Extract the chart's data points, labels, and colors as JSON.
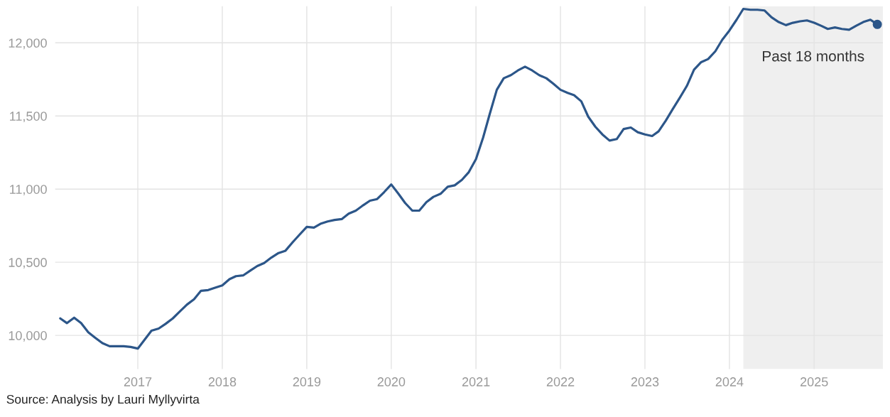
{
  "chart_data": {
    "type": "line",
    "series": [
      {
        "color": "#2c5689",
        "x": [
          "2016-02",
          "2016-03",
          "2016-04",
          "2016-05",
          "2016-06",
          "2016-07",
          "2016-08",
          "2016-09",
          "2016-10",
          "2016-11",
          "2016-12",
          "2017-01",
          "2017-02",
          "2017-03",
          "2017-04",
          "2017-05",
          "2017-06",
          "2017-07",
          "2017-08",
          "2017-09",
          "2017-10",
          "2017-11",
          "2017-12",
          "2018-01",
          "2018-02",
          "2018-03",
          "2018-04",
          "2018-05",
          "2018-06",
          "2018-07",
          "2018-08",
          "2018-09",
          "2018-10",
          "2018-11",
          "2018-12",
          "2019-01",
          "2019-02",
          "2019-03",
          "2019-04",
          "2019-05",
          "2019-06",
          "2019-07",
          "2019-08",
          "2019-09",
          "2019-10",
          "2019-11",
          "2019-12",
          "2020-01",
          "2020-02",
          "2020-03",
          "2020-04",
          "2020-05",
          "2020-06",
          "2020-07",
          "2020-08",
          "2020-09",
          "2020-10",
          "2020-11",
          "2020-12",
          "2021-01",
          "2021-02",
          "2021-03",
          "2021-04",
          "2021-05",
          "2021-06",
          "2021-07",
          "2021-08",
          "2021-09",
          "2021-10",
          "2021-11",
          "2021-12",
          "2022-01",
          "2022-02",
          "2022-03",
          "2022-04",
          "2022-05",
          "2022-06",
          "2022-07",
          "2022-08",
          "2022-09",
          "2022-10",
          "2022-11",
          "2022-12",
          "2023-01",
          "2023-02",
          "2023-03",
          "2023-04",
          "2023-05",
          "2023-06",
          "2023-07",
          "2023-08",
          "2023-09",
          "2023-10",
          "2023-11",
          "2023-12",
          "2024-01",
          "2024-02",
          "2024-03",
          "2024-04",
          "2024-05",
          "2024-06",
          "2024-07",
          "2024-08",
          "2024-09",
          "2024-10",
          "2024-11",
          "2024-12",
          "2025-01",
          "2025-02",
          "2025-03",
          "2025-04",
          "2025-05",
          "2025-06",
          "2025-07",
          "2025-08",
          "2025-09",
          "2025-10"
        ],
        "values": [
          10116,
          10084,
          10121,
          10084,
          10021,
          9984,
          9947,
          9926,
          9926,
          9926,
          9921,
          9910,
          9974,
          10032,
          10047,
          10079,
          10116,
          10163,
          10210,
          10247,
          10305,
          10310,
          10326,
          10342,
          10384,
          10405,
          10410,
          10442,
          10474,
          10495,
          10532,
          10563,
          10579,
          10637,
          10689,
          10742,
          10737,
          10763,
          10779,
          10789,
          10795,
          10832,
          10853,
          10889,
          10921,
          10932,
          10979,
          11032,
          10968,
          10905,
          10853,
          10853,
          10911,
          10947,
          10968,
          11016,
          11026,
          11063,
          11116,
          11205,
          11353,
          11511,
          11679,
          11758,
          11779,
          11811,
          11837,
          11811,
          11779,
          11758,
          11721,
          11679,
          11658,
          11642,
          11600,
          11495,
          11426,
          11374,
          11332,
          11342,
          11411,
          11421,
          11389,
          11374,
          11363,
          11395,
          11468,
          11547,
          11626,
          11705,
          11816,
          11868,
          11889,
          11942,
          12021,
          12084,
          12158,
          12232,
          12226,
          12226,
          12221,
          12174,
          12142,
          12121,
          12137,
          12147,
          12153,
          12137,
          12116,
          12095,
          12105,
          12095,
          12089,
          12116,
          12142,
          12158,
          12126
        ]
      },
      {
        "type": "scatter",
        "color": "#2c5689",
        "x": [
          "2025-10"
        ],
        "values": [
          12126
        ]
      }
    ],
    "xlim": [
      "2016-01-10",
      "2025-10-25"
    ],
    "xticks": [
      "2017",
      "2018",
      "2019",
      "2020",
      "2021",
      "2022",
      "2023",
      "2024",
      "2025"
    ],
    "ylim": [
      9770,
      12250
    ],
    "yticks": [
      {
        "value": 10000,
        "label": "10,000"
      },
      {
        "value": 10500,
        "label": "10,500"
      },
      {
        "value": 11000,
        "label": "11,000"
      },
      {
        "value": 11500,
        "label": "11,500"
      },
      {
        "value": 12000,
        "label": "12,000"
      }
    ],
    "grid": true,
    "bands": [
      {
        "axis": "x",
        "from": "2024-03",
        "to": "2025-10-25",
        "label": "Past 18 months",
        "color": "#efefef"
      }
    ],
    "annotations": [
      "Source: Analysis by Lauri Myllyvirta"
    ]
  }
}
